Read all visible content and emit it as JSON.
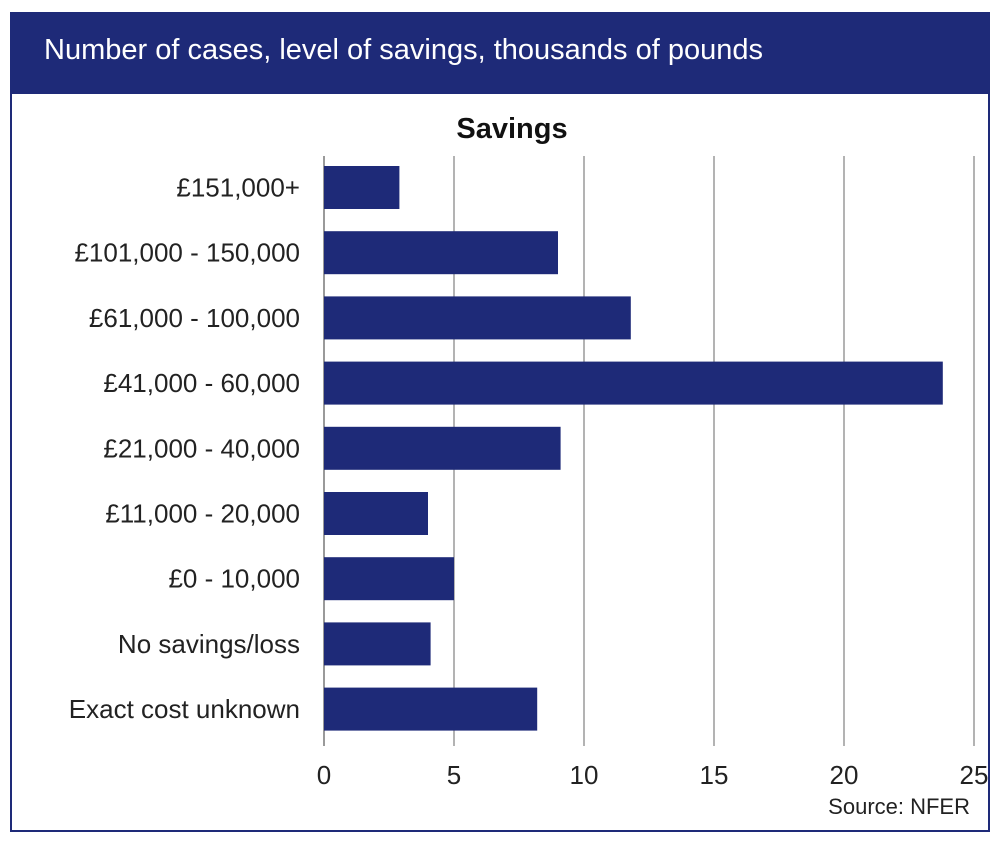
{
  "header": {
    "title": "Number of cases, level of savings, thousands of pounds"
  },
  "colors": {
    "accent": "#1e2a78",
    "bar": "#1e2a78",
    "grid": "#9a9a9a",
    "text": "#222222"
  },
  "chart_data": {
    "type": "bar",
    "orientation": "horizontal",
    "title": "Savings",
    "categories": [
      "£151,000+",
      "£101,000 - 150,000",
      "£61,000 - 100,000",
      "£41,000 - 60,000",
      "£21,000 - 40,000",
      "£11,000 - 20,000",
      "£0 - 10,000",
      "No savings/loss",
      "Exact cost unknown"
    ],
    "values": [
      2.9,
      9.0,
      11.8,
      23.8,
      9.1,
      4.0,
      5.0,
      4.1,
      8.2
    ],
    "xlim": [
      0,
      25
    ],
    "xticks": [
      0,
      5,
      10,
      15,
      20,
      25
    ],
    "grid": true,
    "xlabel": "",
    "ylabel": ""
  },
  "source": "Source: NFER"
}
